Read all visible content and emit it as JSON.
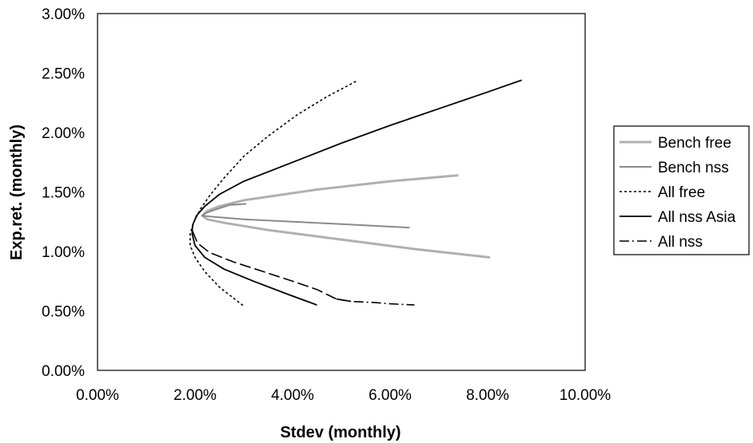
{
  "chart_data": {
    "type": "line",
    "title": "",
    "xlabel": "Stdev (monthly)",
    "ylabel": "Exp.ret. (monthly)",
    "xlim": [
      0,
      0.1
    ],
    "ylim": [
      0,
      0.03
    ],
    "x_ticks": [
      {
        "value": 0.0,
        "label": "0.00%"
      },
      {
        "value": 0.02,
        "label": "2.00%"
      },
      {
        "value": 0.04,
        "label": "4.00%"
      },
      {
        "value": 0.06,
        "label": "6.00%"
      },
      {
        "value": 0.08,
        "label": "8.00%"
      },
      {
        "value": 0.1,
        "label": "10.00%"
      }
    ],
    "y_ticks": [
      {
        "value": 0.0,
        "label": "0.00%"
      },
      {
        "value": 0.005,
        "label": "0.50%"
      },
      {
        "value": 0.01,
        "label": "1.00%"
      },
      {
        "value": 0.015,
        "label": "1.50%"
      },
      {
        "value": 0.02,
        "label": "2.00%"
      },
      {
        "value": 0.025,
        "label": "2.50%"
      },
      {
        "value": 0.03,
        "label": "3.00%"
      }
    ],
    "grid": false,
    "legend_position": "right",
    "series": [
      {
        "name": "Bench free",
        "color": "#b0b0b0",
        "dash": "solid",
        "width": 3,
        "points": [
          [
            0.074,
            0.0164
          ],
          [
            0.06,
            0.0159
          ],
          [
            0.045,
            0.0152
          ],
          [
            0.03,
            0.0143
          ],
          [
            0.025,
            0.0138
          ],
          [
            0.0225,
            0.0134
          ],
          [
            0.0215,
            0.013
          ],
          [
            0.0225,
            0.0127
          ],
          [
            0.026,
            0.0124
          ],
          [
            0.035,
            0.0118
          ],
          [
            0.05,
            0.011
          ],
          [
            0.065,
            0.0102
          ],
          [
            0.0805,
            0.0095
          ]
        ]
      },
      {
        "name": "Bench nss",
        "color": "#8a8a8a",
        "dash": "solid",
        "width": 2,
        "points": [
          [
            0.0305,
            0.014
          ],
          [
            0.027,
            0.0139
          ],
          [
            0.024,
            0.0135
          ],
          [
            0.022,
            0.0132
          ],
          [
            0.0215,
            0.013
          ],
          [
            0.024,
            0.0129
          ],
          [
            0.03,
            0.0127
          ],
          [
            0.04,
            0.0125
          ],
          [
            0.05,
            0.0123
          ],
          [
            0.064,
            0.012
          ]
        ]
      },
      {
        "name": "All free",
        "color": "#000000",
        "dash": "3,3",
        "width": 1.6,
        "points": [
          [
            0.053,
            0.0243
          ],
          [
            0.047,
            0.023
          ],
          [
            0.041,
            0.0215
          ],
          [
            0.035,
            0.0197
          ],
          [
            0.03,
            0.018
          ],
          [
            0.026,
            0.0162
          ],
          [
            0.023,
            0.0147
          ],
          [
            0.021,
            0.0135
          ],
          [
            0.0198,
            0.0125
          ],
          [
            0.019,
            0.0115
          ],
          [
            0.019,
            0.0105
          ],
          [
            0.02,
            0.0095
          ],
          [
            0.022,
            0.0083
          ],
          [
            0.025,
            0.007
          ],
          [
            0.03,
            0.0054
          ]
        ]
      },
      {
        "name": "All nss Asia",
        "color": "#000000",
        "dash": "solid",
        "width": 1.8,
        "points": [
          [
            0.087,
            0.0244
          ],
          [
            0.08,
            0.0234
          ],
          [
            0.07,
            0.022
          ],
          [
            0.06,
            0.0206
          ],
          [
            0.05,
            0.0191
          ],
          [
            0.04,
            0.0175
          ],
          [
            0.03,
            0.0159
          ],
          [
            0.025,
            0.0148
          ],
          [
            0.022,
            0.0138
          ],
          [
            0.0203,
            0.013
          ],
          [
            0.0195,
            0.0122
          ],
          [
            0.0194,
            0.0115
          ],
          [
            0.02,
            0.0105
          ],
          [
            0.022,
            0.0095
          ],
          [
            0.026,
            0.0085
          ],
          [
            0.032,
            0.0075
          ],
          [
            0.039,
            0.0064
          ],
          [
            0.045,
            0.0055
          ]
        ]
      },
      {
        "name": "All nss",
        "color": "#000000",
        "dash": "14,5",
        "width": 1.6,
        "points": [
          [
            0.0195,
            0.0117
          ],
          [
            0.0205,
            0.0107
          ],
          [
            0.023,
            0.0099
          ],
          [
            0.028,
            0.0091
          ],
          [
            0.034,
            0.0083
          ],
          [
            0.04,
            0.0075
          ],
          [
            0.045,
            0.0068
          ],
          [
            0.049,
            0.006
          ],
          [
            0.052,
            0.0058
          ]
        ]
      },
      {
        "name": "",
        "legend": false,
        "color": "#000000",
        "dash": "12,4,2,4",
        "width": 1.6,
        "points": [
          [
            0.049,
            0.006
          ],
          [
            0.052,
            0.0058
          ],
          [
            0.057,
            0.0057
          ],
          [
            0.06,
            0.0056
          ],
          [
            0.065,
            0.0055
          ]
        ]
      }
    ]
  }
}
